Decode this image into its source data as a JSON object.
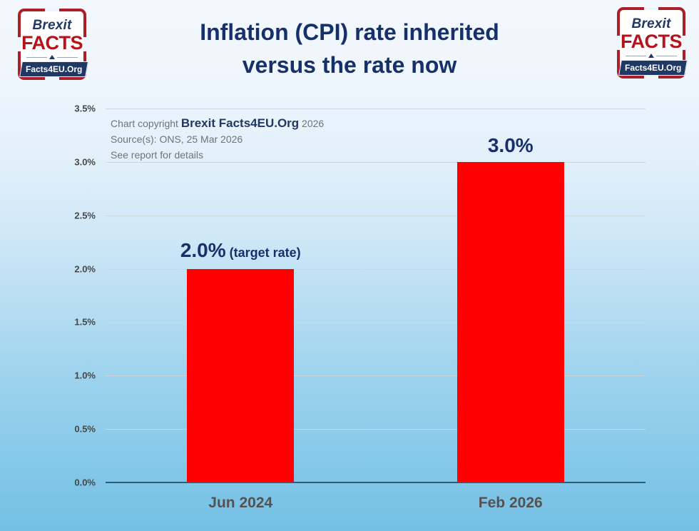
{
  "header": {
    "title_line1": "Inflation (CPI) rate inherited",
    "title_line2": "versus the rate now"
  },
  "logo": {
    "brexit": "Brexit",
    "facts": "FACTS",
    "site": "Facts4EU.Org",
    "navy": "#1f3864",
    "red": "#b5121b",
    "frame_red": "#ad1f28"
  },
  "copyright": {
    "prefix": "Chart copyright ",
    "brand": "Brexit Facts4EU.Org",
    "year": " 2026",
    "source": "Source(s): ONS, 25 Mar 2026",
    "note": "See report for details"
  },
  "chart_data": {
    "type": "bar",
    "title": "Inflation (CPI) rate inherited versus the rate now",
    "categories": [
      "Jun 2024",
      "Feb 2026"
    ],
    "values": [
      2.0,
      3.0
    ],
    "bar_labels": [
      "2.0%",
      "3.0%"
    ],
    "bar_label_suffixes": [
      "(target rate)",
      ""
    ],
    "bar_color": "#ff0000",
    "xlabel": "",
    "ylabel": "",
    "ylim": [
      0,
      3.5
    ],
    "ytick_step": 0.5,
    "yticks": [
      "0.0%",
      "0.5%",
      "1.0%",
      "1.5%",
      "2.0%",
      "2.5%",
      "3.0%",
      "3.5%"
    ],
    "grid": true,
    "legend": false,
    "colors": {
      "title": "#16306b",
      "value_label": "#17306b",
      "ytick": "#474747",
      "xtick": "#575250",
      "gridline": "#ccd6dd",
      "axis_line": "#2e5d7a",
      "background_top": "#f2f8fd",
      "background_bottom": "#74c0e4"
    }
  }
}
